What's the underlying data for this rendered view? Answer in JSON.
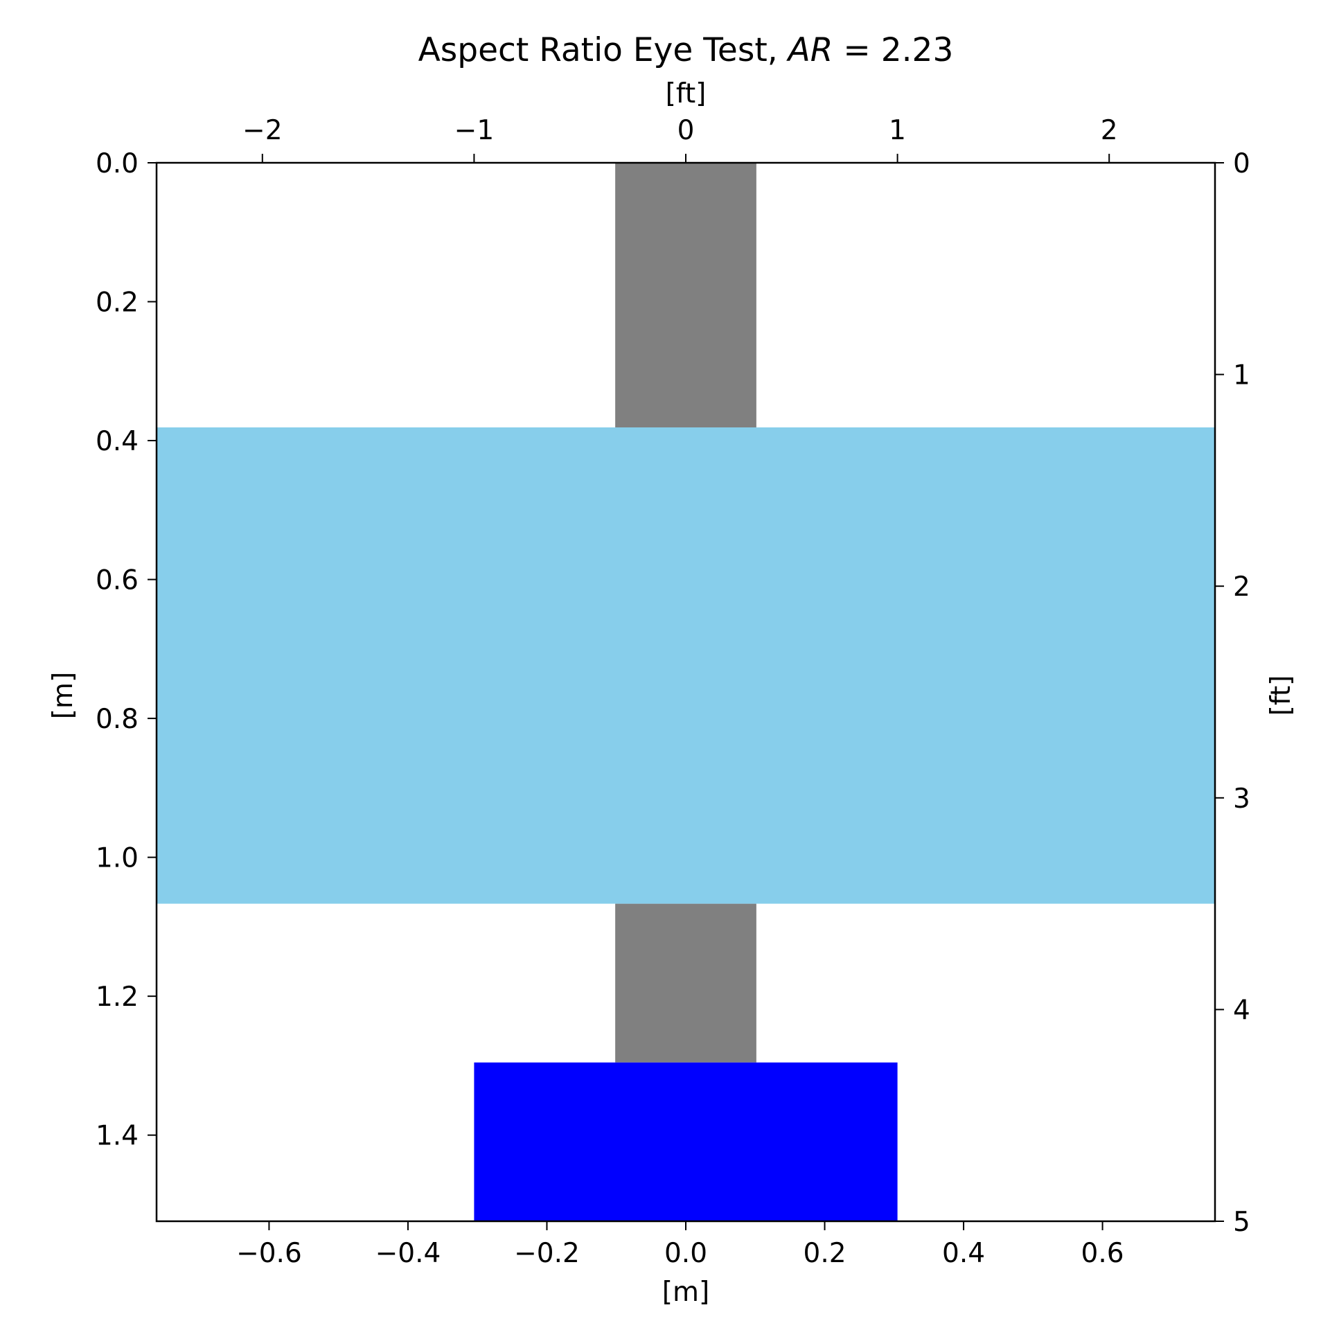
{
  "chart_data": {
    "type": "bar",
    "title": "Aspect Ratio Eye Test, ",
    "title_math": "AR",
    "title_math_value": " = 2.23",
    "xlabel": "[m]",
    "ylabel": "[m]",
    "x2label": "[ft]",
    "y2label": "[ft]",
    "xlim": [
      -0.762,
      0.762
    ],
    "ylim": [
      0.0,
      1.524
    ],
    "x2lim": [
      -2.5,
      2.5
    ],
    "y2lim": [
      0,
      5
    ],
    "y_inverted": true,
    "grid": false,
    "x_ticks": [
      -0.6,
      -0.4,
      -0.2,
      0.0,
      0.2,
      0.4,
      0.6
    ],
    "x_tick_labels": [
      "−0.6",
      "−0.4",
      "−0.2",
      "0.0",
      "0.2",
      "0.4",
      "0.6"
    ],
    "y_ticks": [
      0.0,
      0.2,
      0.4,
      0.6,
      0.8,
      1.0,
      1.2,
      1.4
    ],
    "y_tick_labels": [
      "0.0",
      "0.2",
      "0.4",
      "0.6",
      "0.8",
      "1.0",
      "1.2",
      "1.4"
    ],
    "x2_ticks": [
      -2,
      -1,
      0,
      1,
      2
    ],
    "x2_tick_labels": [
      "−2",
      "−1",
      "0",
      "1",
      "2"
    ],
    "y2_ticks": [
      0,
      1,
      2,
      3,
      4,
      5
    ],
    "y2_tick_labels": [
      "0",
      "1",
      "2",
      "3",
      "4",
      "5"
    ],
    "rectangles": [
      {
        "name": "post-upper",
        "x0": -0.1016,
        "x1": 0.1016,
        "y0": 0.0,
        "y1": 0.381,
        "color": "#808080"
      },
      {
        "name": "post-lower",
        "x0": -0.1016,
        "x1": 0.1016,
        "y0": 1.0668,
        "y1": 1.2954,
        "color": "#808080"
      },
      {
        "name": "sign-panel",
        "x0": -0.762,
        "x1": 0.762,
        "y0": 0.381,
        "y1": 1.0668,
        "color": "#87ceeb"
      },
      {
        "name": "base-block",
        "x0": -0.3048,
        "x1": 0.3048,
        "y0": 1.2954,
        "y1": 1.524,
        "color": "#0000ff"
      }
    ]
  }
}
